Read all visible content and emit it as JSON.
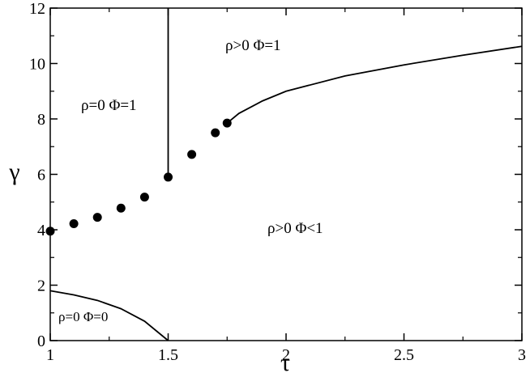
{
  "chart_data": {
    "type": "line",
    "xlabel": "τ",
    "ylabel": "γ",
    "xlim": [
      1,
      3
    ],
    "xticks": [
      1,
      1.5,
      2,
      2.5,
      3
    ],
    "xminorticks": [
      1.25,
      1.75,
      2.25,
      2.75
    ],
    "ylim": [
      0,
      12
    ],
    "yticks": [
      0,
      2,
      4,
      6,
      8,
      10,
      12
    ],
    "yminorticks": [
      1,
      3,
      5,
      7,
      9,
      11
    ],
    "annotations": [
      "ρ>0 Φ=1",
      "ρ=0 Φ=1",
      "ρ>0 Φ<1",
      "ρ=0 Φ=0"
    ],
    "series": [
      {
        "style": "markers",
        "color": "#000000",
        "x": [
          1,
          1.1,
          1.2,
          1.3,
          1.4,
          1.5,
          1.6,
          1.7,
          1.75
        ],
        "values": [
          3.95,
          4.22,
          4.45,
          4.78,
          5.18,
          5.9,
          6.72,
          7.5,
          7.85
        ]
      },
      {
        "style": "line",
        "color": "#000000",
        "x": [
          1.5,
          1.5
        ],
        "values": [
          5.9,
          12
        ]
      },
      {
        "style": "line",
        "color": "#000000",
        "x": [
          1.75,
          1.8,
          1.9,
          2,
          2.25,
          2.5,
          2.75,
          3
        ],
        "values": [
          7.85,
          8.2,
          8.65,
          9.0,
          9.55,
          9.95,
          10.3,
          10.62
        ]
      },
      {
        "style": "line",
        "color": "#000000",
        "x": [
          1,
          1.1,
          1.2,
          1.3,
          1.4,
          1.5
        ],
        "values": [
          1.8,
          1.65,
          1.45,
          1.15,
          0.7,
          0
        ]
      }
    ]
  }
}
